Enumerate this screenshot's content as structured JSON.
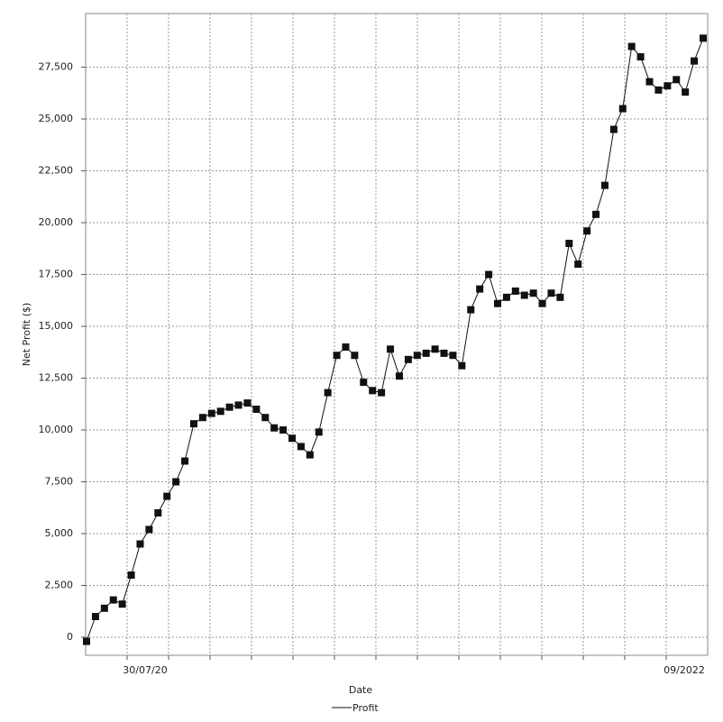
{
  "chart_data": {
    "type": "line",
    "x_label": "Date",
    "y_label": "Net Profit ($)",
    "x_tick_labels": [
      "30/07/20",
      "09/2022"
    ],
    "series": [
      {
        "name": "Profit",
        "color": "#111111",
        "values": [
          -200,
          1000,
          1400,
          1800,
          1600,
          3000,
          4500,
          5200,
          6000,
          6800,
          7500,
          8500,
          10300,
          10600,
          10800,
          10900,
          11100,
          11200,
          11300,
          11000,
          10600,
          10100,
          10000,
          9600,
          9200,
          8800,
          9900,
          11800,
          13600,
          14000,
          13600,
          12300,
          11900,
          11800,
          13900,
          12600,
          13400,
          13600,
          13700,
          13900,
          13700,
          13600,
          13100,
          15800,
          16800,
          17500,
          16100,
          16400,
          16700,
          16500,
          16600,
          16100,
          16600,
          16400,
          19000,
          18000,
          19600,
          20400,
          21800,
          24500,
          25500,
          28500,
          28000,
          26800,
          26400,
          26600,
          26900,
          26300,
          27800,
          28900
        ]
      }
    ],
    "ylim": [
      -870,
      30090
    ],
    "yticks": [
      0,
      {
        "value": 2500,
        "label": "2,500"
      },
      {
        "value": 5000,
        "label": "5,000"
      },
      {
        "value": 7500,
        "label": "7,500"
      },
      {
        "value": 10000,
        "label": "10,000"
      },
      {
        "value": 12500,
        "label": "12,500"
      },
      {
        "value": 15000,
        "label": "15,000"
      },
      {
        "value": 17500,
        "label": "17,500"
      },
      {
        "value": 20000,
        "label": "20,000"
      },
      {
        "value": 22500,
        "label": "22,500"
      },
      {
        "value": 25000,
        "label": "25,000"
      },
      {
        "value": 27500,
        "label": "27,500"
      }
    ],
    "grid": true
  }
}
